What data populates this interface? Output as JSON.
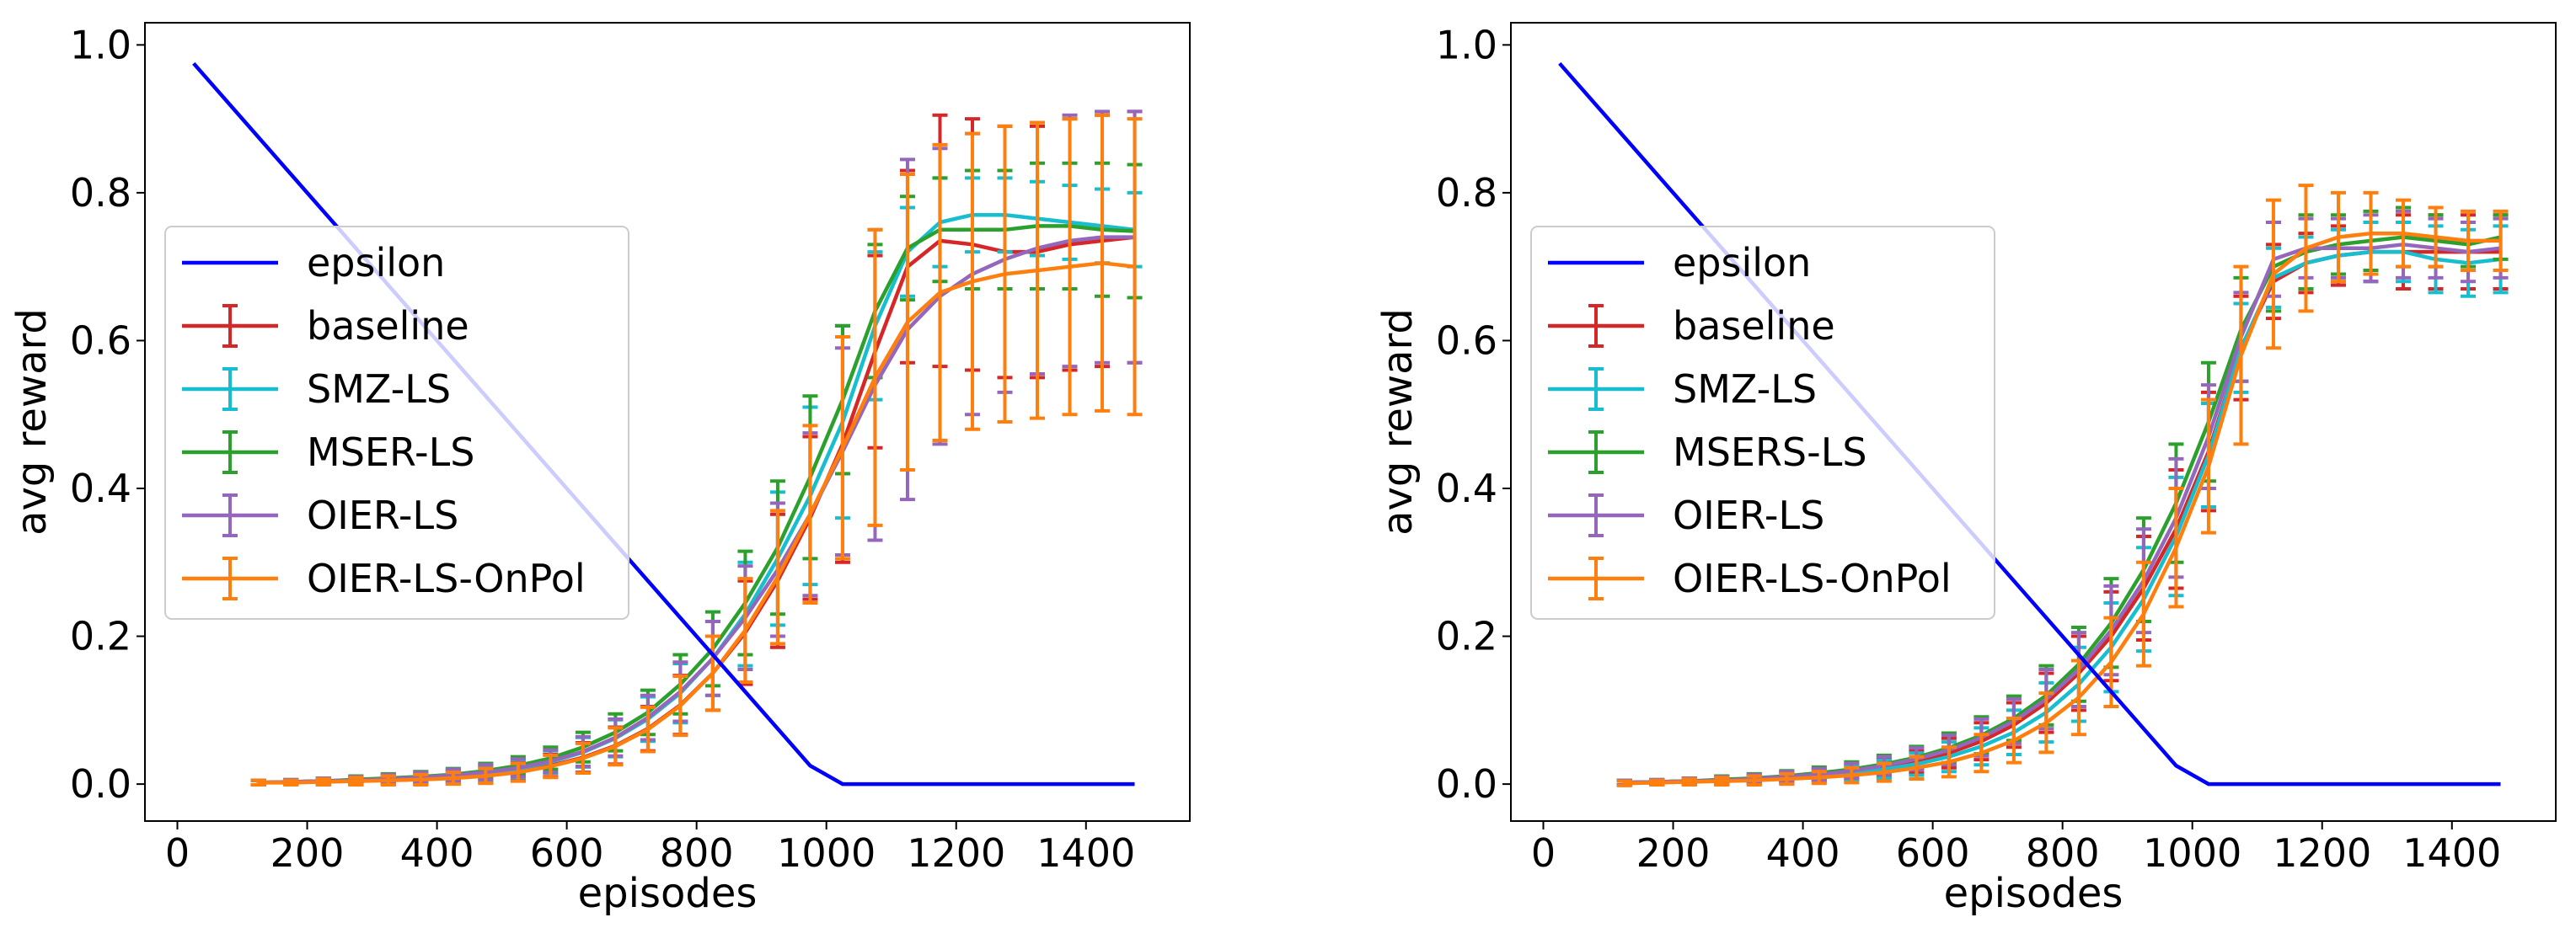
{
  "colors": {
    "epsilon": "#0000ff",
    "baseline": "#d62728",
    "smz": "#17becf",
    "mser": "#2ca02c",
    "oier": "#9467bd",
    "onpol": "#ff7f0e"
  },
  "chart_data": [
    {
      "type": "line",
      "title": "",
      "xlabel": "episodes",
      "ylabel": "avg reward",
      "xlim": [
        -50,
        1560
      ],
      "ylim": [
        -0.05,
        1.03
      ],
      "xticks": [
        0,
        200,
        400,
        600,
        800,
        1000,
        1200,
        1400
      ],
      "xtick_labels": [
        "0",
        "200",
        "400",
        "600",
        "800",
        "1000",
        "1200",
        "1400"
      ],
      "yticks": [
        0.0,
        0.2,
        0.4,
        0.6,
        0.8,
        1.0
      ],
      "ytick_labels": [
        "0.0",
        "0.2",
        "0.4",
        "0.6",
        "0.8",
        "1.0"
      ],
      "legend_position": "center-left",
      "x": [
        125,
        175,
        225,
        275,
        325,
        375,
        425,
        475,
        525,
        575,
        625,
        675,
        725,
        775,
        825,
        875,
        925,
        975,
        1025,
        1075,
        1125,
        1175,
        1225,
        1275,
        1325,
        1375,
        1425,
        1475
      ],
      "epsilon": {
        "name": "epsilon",
        "color_key": "epsilon",
        "x": [
          25,
          975,
          1025,
          1475
        ],
        "y": [
          0.975,
          0.025,
          0.0,
          0.0
        ]
      },
      "series": [
        {
          "name": "baseline",
          "color_key": "baseline",
          "values": [
            0.002,
            0.003,
            0.004,
            0.005,
            0.006,
            0.007,
            0.009,
            0.012,
            0.017,
            0.025,
            0.036,
            0.052,
            0.075,
            0.107,
            0.15,
            0.205,
            0.275,
            0.36,
            0.46,
            0.585,
            0.7,
            0.735,
            0.73,
            0.72,
            0.72,
            0.73,
            0.735,
            0.74
          ],
          "err": [
            0.003,
            0.003,
            0.004,
            0.005,
            0.006,
            0.007,
            0.008,
            0.01,
            0.012,
            0.015,
            0.02,
            0.025,
            0.03,
            0.04,
            0.05,
            0.07,
            0.09,
            0.11,
            0.16,
            0.13,
            0.13,
            0.17,
            0.17,
            0.17,
            0.17,
            0.17,
            0.17,
            0.17
          ]
        },
        {
          "name": "SMZ-LS",
          "color_key": "smz",
          "values": [
            0.002,
            0.003,
            0.004,
            0.005,
            0.007,
            0.008,
            0.011,
            0.015,
            0.021,
            0.03,
            0.043,
            0.062,
            0.088,
            0.123,
            0.17,
            0.23,
            0.305,
            0.39,
            0.49,
            0.62,
            0.72,
            0.76,
            0.77,
            0.77,
            0.765,
            0.76,
            0.755,
            0.75
          ],
          "err": [
            0.003,
            0.003,
            0.004,
            0.005,
            0.006,
            0.007,
            0.008,
            0.01,
            0.012,
            0.015,
            0.02,
            0.025,
            0.03,
            0.04,
            0.05,
            0.07,
            0.09,
            0.12,
            0.13,
            0.1,
            0.06,
            0.06,
            0.05,
            0.05,
            0.05,
            0.05,
            0.05,
            0.05
          ]
        },
        {
          "name": "MSER-LS",
          "color_key": "mser",
          "values": [
            0.002,
            0.003,
            0.004,
            0.006,
            0.008,
            0.01,
            0.013,
            0.018,
            0.025,
            0.035,
            0.05,
            0.07,
            0.097,
            0.135,
            0.183,
            0.245,
            0.32,
            0.415,
            0.52,
            0.64,
            0.725,
            0.75,
            0.75,
            0.75,
            0.755,
            0.755,
            0.75,
            0.748
          ],
          "err": [
            0.003,
            0.003,
            0.004,
            0.005,
            0.006,
            0.007,
            0.008,
            0.01,
            0.012,
            0.015,
            0.02,
            0.025,
            0.03,
            0.04,
            0.05,
            0.07,
            0.09,
            0.11,
            0.1,
            0.09,
            0.07,
            0.07,
            0.08,
            0.08,
            0.085,
            0.085,
            0.09,
            0.09
          ]
        },
        {
          "name": "OIER-LS",
          "color_key": "oier",
          "values": [
            0.002,
            0.003,
            0.004,
            0.005,
            0.007,
            0.009,
            0.012,
            0.016,
            0.022,
            0.031,
            0.044,
            0.063,
            0.09,
            0.125,
            0.17,
            0.225,
            0.29,
            0.365,
            0.45,
            0.54,
            0.615,
            0.66,
            0.69,
            0.71,
            0.725,
            0.735,
            0.74,
            0.74
          ],
          "err": [
            0.003,
            0.003,
            0.004,
            0.005,
            0.006,
            0.007,
            0.008,
            0.01,
            0.012,
            0.015,
            0.02,
            0.025,
            0.03,
            0.04,
            0.05,
            0.07,
            0.09,
            0.11,
            0.14,
            0.21,
            0.23,
            0.2,
            0.19,
            0.18,
            0.17,
            0.17,
            0.17,
            0.17
          ]
        },
        {
          "name": "OIER-LS-OnPol",
          "color_key": "onpol",
          "values": [
            0.002,
            0.002,
            0.003,
            0.004,
            0.005,
            0.006,
            0.008,
            0.011,
            0.016,
            0.024,
            0.035,
            0.051,
            0.074,
            0.106,
            0.15,
            0.208,
            0.28,
            0.365,
            0.455,
            0.55,
            0.625,
            0.665,
            0.68,
            0.69,
            0.695,
            0.7,
            0.705,
            0.7
          ],
          "err": [
            0.003,
            0.003,
            0.004,
            0.005,
            0.006,
            0.007,
            0.008,
            0.01,
            0.012,
            0.015,
            0.02,
            0.025,
            0.03,
            0.04,
            0.05,
            0.07,
            0.09,
            0.12,
            0.15,
            0.2,
            0.2,
            0.2,
            0.2,
            0.2,
            0.2,
            0.2,
            0.2,
            0.2
          ]
        }
      ],
      "legend": [
        "epsilon",
        "baseline",
        "SMZ-LS",
        "MSER-LS",
        "OIER-LS",
        "OIER-LS-OnPol"
      ]
    },
    {
      "type": "line",
      "title": "",
      "xlabel": "episodes",
      "ylabel": "avg reward",
      "xlim": [
        -50,
        1560
      ],
      "ylim": [
        -0.05,
        1.03
      ],
      "xticks": [
        0,
        200,
        400,
        600,
        800,
        1000,
        1200,
        1400
      ],
      "xtick_labels": [
        "0",
        "200",
        "400",
        "600",
        "800",
        "1000",
        "1200",
        "1400"
      ],
      "yticks": [
        0.0,
        0.2,
        0.4,
        0.6,
        0.8,
        1.0
      ],
      "ytick_labels": [
        "0.0",
        "0.2",
        "0.4",
        "0.6",
        "0.8",
        "1.0"
      ],
      "legend_position": "center-left",
      "x": [
        125,
        175,
        225,
        275,
        325,
        375,
        425,
        475,
        525,
        575,
        625,
        675,
        725,
        775,
        825,
        875,
        925,
        975,
        1025,
        1075,
        1125,
        1175,
        1225,
        1275,
        1325,
        1375,
        1425,
        1475
      ],
      "epsilon": {
        "name": "epsilon",
        "color_key": "epsilon",
        "x": [
          25,
          975,
          1025,
          1475
        ],
        "y": [
          0.975,
          0.025,
          0.0,
          0.0
        ]
      },
      "series": [
        {
          "name": "baseline",
          "color_key": "baseline",
          "values": [
            0.002,
            0.003,
            0.004,
            0.005,
            0.007,
            0.009,
            0.012,
            0.016,
            0.022,
            0.03,
            0.042,
            0.058,
            0.08,
            0.11,
            0.15,
            0.2,
            0.265,
            0.345,
            0.45,
            0.59,
            0.68,
            0.705,
            0.715,
            0.72,
            0.72,
            0.72,
            0.72,
            0.72
          ],
          "err": [
            0.003,
            0.003,
            0.004,
            0.005,
            0.006,
            0.007,
            0.008,
            0.01,
            0.012,
            0.015,
            0.02,
            0.025,
            0.03,
            0.04,
            0.05,
            0.06,
            0.07,
            0.08,
            0.08,
            0.07,
            0.05,
            0.04,
            0.04,
            0.04,
            0.05,
            0.05,
            0.05,
            0.05
          ]
        },
        {
          "name": "SMZ-LS",
          "color_key": "smz",
          "values": [
            0.002,
            0.003,
            0.004,
            0.005,
            0.007,
            0.009,
            0.012,
            0.015,
            0.02,
            0.027,
            0.037,
            0.051,
            0.07,
            0.097,
            0.135,
            0.185,
            0.25,
            0.335,
            0.445,
            0.59,
            0.685,
            0.705,
            0.715,
            0.72,
            0.72,
            0.71,
            0.705,
            0.71
          ],
          "err": [
            0.003,
            0.003,
            0.004,
            0.005,
            0.006,
            0.007,
            0.008,
            0.01,
            0.012,
            0.015,
            0.02,
            0.025,
            0.03,
            0.04,
            0.05,
            0.06,
            0.07,
            0.08,
            0.07,
            0.06,
            0.04,
            0.035,
            0.035,
            0.04,
            0.04,
            0.045,
            0.045,
            0.045
          ]
        },
        {
          "name": "MSERS-LS",
          "color_key": "mser",
          "values": [
            0.002,
            0.003,
            0.004,
            0.006,
            0.008,
            0.011,
            0.015,
            0.02,
            0.027,
            0.036,
            0.049,
            0.066,
            0.089,
            0.12,
            0.162,
            0.218,
            0.29,
            0.38,
            0.49,
            0.615,
            0.7,
            0.72,
            0.73,
            0.735,
            0.74,
            0.735,
            0.73,
            0.74
          ],
          "err": [
            0.003,
            0.003,
            0.004,
            0.005,
            0.006,
            0.007,
            0.008,
            0.01,
            0.012,
            0.015,
            0.02,
            0.025,
            0.03,
            0.04,
            0.05,
            0.06,
            0.07,
            0.08,
            0.08,
            0.07,
            0.06,
            0.05,
            0.04,
            0.04,
            0.04,
            0.035,
            0.03,
            0.03
          ]
        },
        {
          "name": "OIER-LS",
          "color_key": "oier",
          "values": [
            0.002,
            0.003,
            0.004,
            0.005,
            0.007,
            0.01,
            0.013,
            0.018,
            0.025,
            0.034,
            0.046,
            0.063,
            0.085,
            0.115,
            0.155,
            0.208,
            0.275,
            0.36,
            0.47,
            0.605,
            0.71,
            0.725,
            0.725,
            0.725,
            0.73,
            0.725,
            0.72,
            0.725
          ],
          "err": [
            0.003,
            0.003,
            0.004,
            0.005,
            0.006,
            0.007,
            0.008,
            0.01,
            0.012,
            0.015,
            0.02,
            0.025,
            0.03,
            0.04,
            0.05,
            0.06,
            0.07,
            0.08,
            0.07,
            0.06,
            0.05,
            0.04,
            0.04,
            0.045,
            0.045,
            0.04,
            0.04,
            0.04
          ]
        },
        {
          "name": "OIER-LS-OnPol",
          "color_key": "onpol",
          "values": [
            0.001,
            0.002,
            0.003,
            0.004,
            0.005,
            0.007,
            0.009,
            0.012,
            0.016,
            0.022,
            0.03,
            0.042,
            0.059,
            0.083,
            0.117,
            0.165,
            0.23,
            0.32,
            0.43,
            0.58,
            0.69,
            0.725,
            0.74,
            0.745,
            0.745,
            0.74,
            0.735,
            0.735
          ],
          "err": [
            0.003,
            0.003,
            0.004,
            0.005,
            0.006,
            0.007,
            0.008,
            0.01,
            0.012,
            0.015,
            0.02,
            0.025,
            0.03,
            0.04,
            0.05,
            0.06,
            0.07,
            0.08,
            0.09,
            0.12,
            0.1,
            0.085,
            0.06,
            0.055,
            0.045,
            0.04,
            0.04,
            0.04
          ]
        }
      ],
      "legend": [
        "epsilon",
        "baseline",
        "SMZ-LS",
        "MSERS-LS",
        "OIER-LS",
        "OIER-LS-OnPol"
      ]
    }
  ]
}
